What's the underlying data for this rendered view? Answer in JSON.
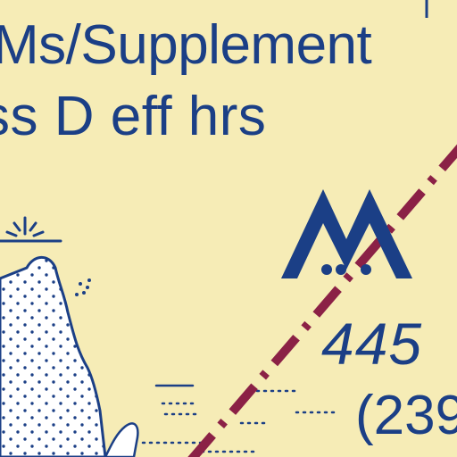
{
  "colors": {
    "land_fill": "#f6ecb6",
    "label_ink": "#1b3f86",
    "water_fill": "#ffffff",
    "water_dots": "#1b3f86",
    "airway_line": "#8b2146"
  },
  "labels": {
    "line1": "Ms/Supplement",
    "line2": "ss D eff hrs",
    "elevation": "445",
    "elevation_paren": "(239"
  },
  "symbols": {
    "peak_symbol": "mountain-peak-icon",
    "obstruction_marker": "light-beacon-icon"
  }
}
